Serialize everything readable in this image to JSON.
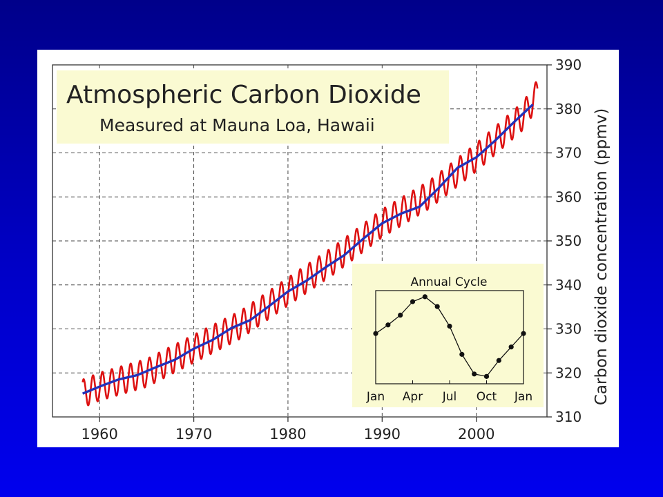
{
  "chart_data": [
    {
      "type": "line",
      "title": "Atmospheric Carbon Dioxide",
      "subtitle": "Measured at Mauna Loa, Hawaii",
      "xlabel": "",
      "ylabel": "Carbon dioxide concentration (ppmv)",
      "xlim": [
        1955,
        2007.5
      ],
      "ylim": [
        310,
        390
      ],
      "x_ticks": [
        1960,
        1970,
        1980,
        1990,
        2000
      ],
      "y_ticks": [
        310,
        320,
        330,
        340,
        350,
        360,
        370,
        380,
        390
      ],
      "grid": true,
      "y_axis_position": "right",
      "series": [
        {
          "name": "",
          "kind": "monthly",
          "color": "#dd1111",
          "x_range": [
            1958.2,
            2006.5
          ],
          "seasonal_amplitude_ppmv": 3.2,
          "trend_x": [
            1958.2,
            1960,
            1965,
            1970,
            1975,
            1980,
            1985,
            1990,
            1995,
            2000,
            2005,
            2006.5
          ],
          "trend_y": [
            315.3,
            316.9,
            320.0,
            325.5,
            331.0,
            338.5,
            345.8,
            354.0,
            360.5,
            369.0,
            378.5,
            383.5
          ]
        },
        {
          "name": "",
          "kind": "annual mean",
          "color": "#2233bb",
          "x": [
            1958.2,
            1960,
            1962,
            1964,
            1966,
            1968,
            1970,
            1972,
            1974,
            1976,
            1978,
            1980,
            1982,
            1984,
            1986,
            1988,
            1990,
            1992,
            1994,
            1996,
            1998,
            2000,
            2002,
            2004,
            2006
          ],
          "y": [
            315.3,
            316.9,
            318.5,
            319.5,
            321.3,
            323.0,
            325.5,
            327.5,
            330.2,
            332.0,
            335.2,
            338.5,
            341.0,
            344.0,
            346.8,
            350.5,
            354.0,
            356.2,
            357.8,
            362.0,
            366.6,
            369.0,
            372.8,
            377.0,
            381.0
          ]
        }
      ]
    },
    {
      "type": "line",
      "title": "Annual Cycle",
      "xlabel": "",
      "ylabel": "",
      "x_tick_labels": [
        "Jan",
        "Apr",
        "Jul",
        "Oct",
        "Jan"
      ],
      "x_tick_months": [
        0,
        3,
        6,
        9,
        12
      ],
      "ylim": [
        -3.8,
        3.8
      ],
      "series": [
        {
          "name": "",
          "x_months": [
            0,
            1,
            2,
            3,
            4,
            5,
            6,
            7,
            8,
            9,
            10,
            11,
            12
          ],
          "values": [
            0.3,
            1.0,
            1.8,
            2.9,
            3.3,
            2.5,
            0.9,
            -1.4,
            -3.0,
            -3.2,
            -1.9,
            -0.8,
            0.3
          ]
        }
      ]
    }
  ],
  "colors": {
    "background": "#0000c0",
    "panel_bg": "#ffffff",
    "title_box": "#fafad2",
    "inset_bg": "#fafad2",
    "monthly": "#dd1111",
    "annual": "#2233bb"
  }
}
